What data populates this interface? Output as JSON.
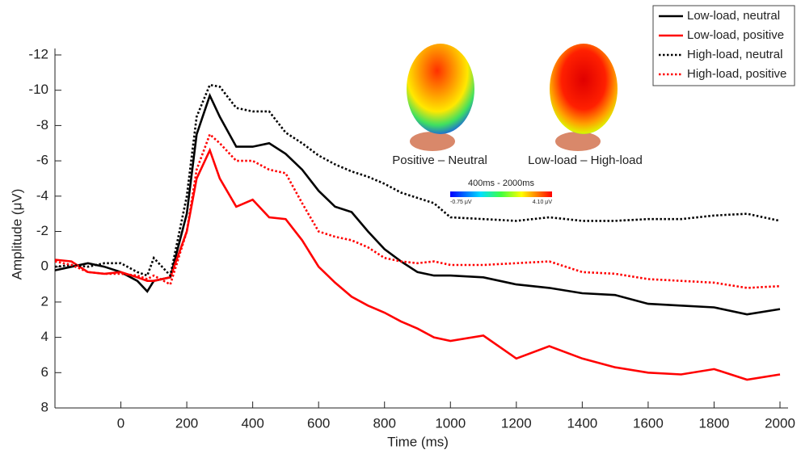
{
  "chart_data": {
    "type": "line",
    "x_label": "Time (ms)",
    "y_label": "Amplitude (μV)",
    "x": [
      -200,
      -150,
      -100,
      -50,
      0,
      50,
      80,
      100,
      150,
      200,
      230,
      270,
      300,
      350,
      400,
      450,
      500,
      550,
      600,
      650,
      700,
      750,
      800,
      850,
      900,
      950,
      1000,
      1100,
      1200,
      1300,
      1400,
      1500,
      1600,
      1700,
      1800,
      1900,
      2000
    ],
    "series": [
      {
        "name": "Low-load, neutral",
        "color": "#000000",
        "style": "solid",
        "values": [
          0.2,
          0,
          -0.2,
          0,
          0.3,
          0.8,
          1.4,
          0.8,
          0.6,
          -3,
          -7.5,
          -9.7,
          -8.5,
          -6.8,
          -6.8,
          -7,
          -6.4,
          -5.5,
          -4.3,
          -3.4,
          -3.1,
          -2,
          -1,
          -0.3,
          0.3,
          0.5,
          0.5,
          0.6,
          1,
          1.2,
          1.5,
          1.6,
          2.1,
          2.2,
          2.3,
          2.7,
          2.4
        ]
      },
      {
        "name": "Low-load, positive",
        "color": "#ff0000",
        "style": "solid",
        "values": [
          -0.4,
          -0.3,
          0.3,
          0.4,
          0.3,
          0.6,
          0.8,
          0.8,
          0.6,
          -2,
          -5,
          -6.6,
          -5,
          -3.4,
          -3.8,
          -2.8,
          -2.7,
          -1.5,
          0,
          0.9,
          1.7,
          2.2,
          2.6,
          3.1,
          3.5,
          4,
          4.2,
          3.9,
          5.2,
          4.5,
          5.2,
          5.7,
          6,
          6.1,
          5.8,
          6.4,
          6.1
        ]
      },
      {
        "name": "High-load, neutral",
        "color": "#000000",
        "style": "dotted",
        "values": [
          0,
          -0.1,
          0,
          -0.2,
          -0.2,
          0.3,
          0.5,
          -0.5,
          0.5,
          -4,
          -8.5,
          -10.3,
          -10.2,
          -9,
          -8.8,
          -8.8,
          -7.6,
          -7,
          -6.3,
          -5.8,
          -5.4,
          -5.1,
          -4.7,
          -4.2,
          -3.9,
          -3.6,
          -2.8,
          -2.7,
          -2.6,
          -2.8,
          -2.6,
          -2.6,
          -2.7,
          -2.7,
          -2.9,
          -3,
          -2.6
        ]
      },
      {
        "name": "High-load, positive",
        "color": "#ff0000",
        "style": "dotted",
        "values": [
          -0.3,
          -0.1,
          0.3,
          0.4,
          0.4,
          0.5,
          0.7,
          0.5,
          1,
          -2,
          -5.5,
          -7.5,
          -7,
          -6,
          -6,
          -5.5,
          -5.3,
          -3.6,
          -2,
          -1.7,
          -1.5,
          -1.1,
          -0.5,
          -0.3,
          -0.2,
          -0.3,
          -0.1,
          -0.1,
          -0.2,
          -0.3,
          0.3,
          0.4,
          0.7,
          0.8,
          0.9,
          1.2,
          1.1
        ]
      }
    ],
    "xlim": [
      -200,
      2000
    ],
    "xticks": [
      0,
      200,
      400,
      600,
      800,
      1000,
      1200,
      1400,
      1600,
      1800,
      2000
    ],
    "ylim": [
      -12,
      8
    ],
    "yticks": [
      -12,
      -10,
      -8,
      -6,
      -4,
      -2,
      0,
      2,
      4,
      6,
      8
    ],
    "y_inverted": true,
    "grid": false,
    "legend": "top-right",
    "annotations": [
      "Positive – Neutral",
      "Low-load – High-load",
      "400ms - 2000ms",
      "-0.75 μV",
      "4.10 μV"
    ]
  }
}
